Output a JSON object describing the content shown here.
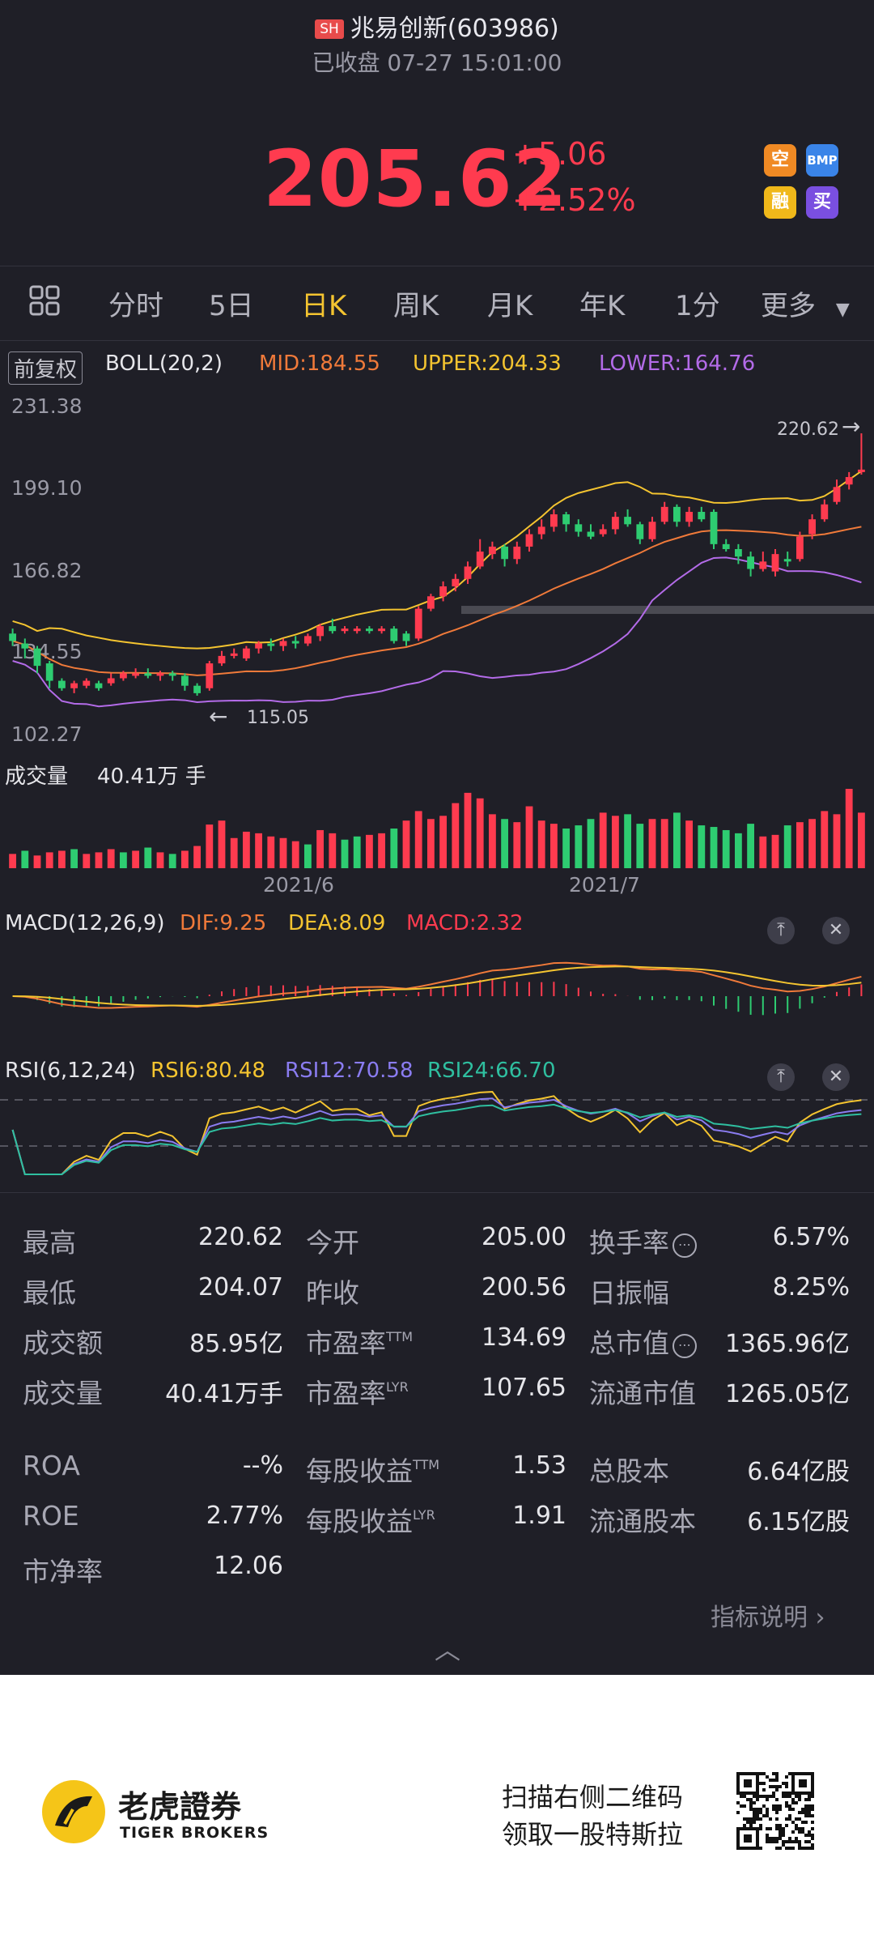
{
  "header": {
    "exchange_badge": "SH",
    "stock_title": "兆易创新(603986)",
    "status": "已收盘 07-27 15:01:00",
    "price": "205.62",
    "change": "+5.06",
    "change_pct": "+2.52%",
    "quick_buttons": [
      {
        "label": "空",
        "icon": "short-icon"
      },
      {
        "label": "BMP",
        "icon": "bmp-icon"
      },
      {
        "label": "融",
        "icon": "margin-icon"
      },
      {
        "label": "买",
        "icon": "buy-icon"
      }
    ]
  },
  "tabs": {
    "items": [
      "分时",
      "5日",
      "日K",
      "周K",
      "月K",
      "年K",
      "1分",
      "更多"
    ],
    "active": "日K"
  },
  "boll": {
    "adjust": "前复权",
    "name": "BOLL(20,2)",
    "mid": "MID:184.55",
    "upper": "UPPER:204.33",
    "lower": "LOWER:164.76"
  },
  "price_axis": [
    "231.38",
    "199.10",
    "166.82",
    "134.55",
    "102.27"
  ],
  "annotations": {
    "high": "220.62",
    "low": "115.05"
  },
  "volume": {
    "label": "成交量",
    "value": "40.41万 手"
  },
  "date_axis": [
    "2021/6",
    "2021/7"
  ],
  "macd": {
    "name": "MACD(12,26,9)",
    "dif": "DIF:9.25",
    "dea": "DEA:8.09",
    "macd": "MACD:2.32"
  },
  "rsi": {
    "name": "RSI(6,12,24)",
    "rsi6": "RSI6:80.48",
    "rsi12": "RSI12:70.58",
    "rsi24": "RSI24:66.70"
  },
  "stats": {
    "col1": [
      {
        "label": "最高",
        "value": "220.62"
      },
      {
        "label": "最低",
        "value": "204.07"
      },
      {
        "label": "成交额",
        "value": "85.95亿"
      },
      {
        "label": "成交量",
        "value": "40.41万手"
      }
    ],
    "col2": [
      {
        "label": "今开",
        "sup": "",
        "value": "205.00"
      },
      {
        "label": "昨收",
        "sup": "",
        "value": "200.56"
      },
      {
        "label": "市盈率",
        "sup": "TTM",
        "value": "134.69"
      },
      {
        "label": "市盈率",
        "sup": "LYR",
        "value": "107.65"
      }
    ],
    "col3": [
      {
        "label": "换手率",
        "value": "6.57%"
      },
      {
        "label": "日振幅",
        "value": "8.25%"
      },
      {
        "label": "总市值",
        "value": "1365.96亿"
      },
      {
        "label": "流通市值",
        "value": "1265.05亿"
      }
    ],
    "extra1": [
      {
        "label": "ROA",
        "value": "--%"
      },
      {
        "label": "ROE",
        "value": "2.77%"
      },
      {
        "label": "市净率",
        "value": "12.06"
      }
    ],
    "extra2": [
      {
        "label": "每股收益",
        "sup": "TTM",
        "value": "1.53"
      },
      {
        "label": "每股收益",
        "sup": "LYR",
        "value": "1.91"
      }
    ],
    "extra3": [
      {
        "label": "总股本",
        "value": "6.64亿股"
      },
      {
        "label": "流通股本",
        "value": "6.15亿股"
      }
    ],
    "indicator_link": "指标说明"
  },
  "footer": {
    "brand_cn": "老虎證券",
    "brand_en": "TIGER BROKERS",
    "promo_line1": "扫描右侧二维码",
    "promo_line2": "领取一股特斯拉"
  },
  "colors": {
    "up": "#ff3b4f",
    "down": "#2ecc71",
    "accent": "#f4c430",
    "bg": "#1f1f27"
  },
  "candles": [
    {
      "o": 140,
      "c": 137,
      "h": 142,
      "l": 135
    },
    {
      "o": 136,
      "c": 134,
      "h": 138,
      "l": 130
    },
    {
      "o": 134,
      "c": 127,
      "h": 135,
      "l": 124
    },
    {
      "o": 128,
      "c": 121,
      "h": 129,
      "l": 118
    },
    {
      "o": 121,
      "c": 118,
      "h": 122,
      "l": 117
    },
    {
      "o": 118,
      "c": 120,
      "h": 121,
      "l": 116
    },
    {
      "o": 119,
      "c": 121,
      "h": 122,
      "l": 118
    },
    {
      "o": 120,
      "c": 118,
      "h": 121,
      "l": 117
    },
    {
      "o": 120,
      "c": 122,
      "h": 124,
      "l": 119
    },
    {
      "o": 122,
      "c": 124,
      "h": 125,
      "l": 121
    },
    {
      "o": 123,
      "c": 124,
      "h": 126,
      "l": 122
    },
    {
      "o": 124,
      "c": 123,
      "h": 126,
      "l": 122
    },
    {
      "o": 123,
      "c": 124,
      "h": 125,
      "l": 121
    },
    {
      "o": 124,
      "c": 123,
      "h": 125,
      "l": 121
    },
    {
      "o": 123,
      "c": 119,
      "h": 124,
      "l": 117
    },
    {
      "o": 119,
      "c": 116,
      "h": 120,
      "l": 115
    },
    {
      "o": 118,
      "c": 128,
      "h": 129,
      "l": 117
    },
    {
      "o": 128,
      "c": 131,
      "h": 133,
      "l": 127
    },
    {
      "o": 131,
      "c": 132,
      "h": 134,
      "l": 130
    },
    {
      "o": 130,
      "c": 134,
      "h": 135,
      "l": 129
    },
    {
      "o": 134,
      "c": 136,
      "h": 137,
      "l": 132
    },
    {
      "o": 136,
      "c": 135,
      "h": 138,
      "l": 133
    },
    {
      "o": 135,
      "c": 137,
      "h": 138,
      "l": 133
    },
    {
      "o": 137,
      "c": 136,
      "h": 139,
      "l": 134
    },
    {
      "o": 136,
      "c": 139,
      "h": 140,
      "l": 135
    },
    {
      "o": 139,
      "c": 143,
      "h": 144,
      "l": 137
    },
    {
      "o": 143,
      "c": 141,
      "h": 146,
      "l": 140
    },
    {
      "o": 141,
      "c": 142,
      "h": 143,
      "l": 140
    },
    {
      "o": 141,
      "c": 142,
      "h": 143,
      "l": 140
    },
    {
      "o": 142,
      "c": 141,
      "h": 143,
      "l": 140
    },
    {
      "o": 141,
      "c": 142,
      "h": 143,
      "l": 140
    },
    {
      "o": 142,
      "c": 137,
      "h": 143,
      "l": 136
    },
    {
      "o": 140,
      "c": 137,
      "h": 141,
      "l": 135
    },
    {
      "o": 138,
      "c": 150,
      "h": 151,
      "l": 137
    },
    {
      "o": 150,
      "c": 155,
      "h": 156,
      "l": 149
    },
    {
      "o": 155,
      "c": 159,
      "h": 161,
      "l": 153
    },
    {
      "o": 159,
      "c": 162,
      "h": 164,
      "l": 157
    },
    {
      "o": 162,
      "c": 167,
      "h": 169,
      "l": 160
    },
    {
      "o": 167,
      "c": 173,
      "h": 178,
      "l": 166
    },
    {
      "o": 172,
      "c": 175,
      "h": 177,
      "l": 170
    },
    {
      "o": 175,
      "c": 170,
      "h": 176,
      "l": 167
    },
    {
      "o": 170,
      "c": 175,
      "h": 177,
      "l": 168
    },
    {
      "o": 175,
      "c": 180,
      "h": 182,
      "l": 173
    },
    {
      "o": 180,
      "c": 183,
      "h": 186,
      "l": 178
    },
    {
      "o": 183,
      "c": 188,
      "h": 190,
      "l": 181
    },
    {
      "o": 188,
      "c": 184,
      "h": 189,
      "l": 181
    },
    {
      "o": 184,
      "c": 181,
      "h": 186,
      "l": 179
    },
    {
      "o": 181,
      "c": 179,
      "h": 184,
      "l": 178
    },
    {
      "o": 180,
      "c": 182,
      "h": 184,
      "l": 179
    },
    {
      "o": 182,
      "c": 187,
      "h": 189,
      "l": 180
    },
    {
      "o": 187,
      "c": 184,
      "h": 190,
      "l": 183
    },
    {
      "o": 184,
      "c": 178,
      "h": 185,
      "l": 176
    },
    {
      "o": 178,
      "c": 185,
      "h": 187,
      "l": 177
    },
    {
      "o": 185,
      "c": 191,
      "h": 193,
      "l": 184
    },
    {
      "o": 191,
      "c": 185,
      "h": 192,
      "l": 183
    },
    {
      "o": 185,
      "c": 189,
      "h": 191,
      "l": 183
    },
    {
      "o": 189,
      "c": 186,
      "h": 191,
      "l": 185
    },
    {
      "o": 189,
      "c": 176,
      "h": 190,
      "l": 174
    },
    {
      "o": 176,
      "c": 174,
      "h": 178,
      "l": 173
    },
    {
      "o": 174,
      "c": 171,
      "h": 176,
      "l": 168
    },
    {
      "o": 171,
      "c": 166,
      "h": 173,
      "l": 163
    },
    {
      "o": 166,
      "c": 169,
      "h": 173,
      "l": 165
    },
    {
      "o": 165,
      "c": 172,
      "h": 174,
      "l": 163
    },
    {
      "o": 170,
      "c": 169,
      "h": 173,
      "l": 167
    },
    {
      "o": 170,
      "c": 179,
      "h": 181,
      "l": 169
    },
    {
      "o": 180,
      "c": 186,
      "h": 188,
      "l": 178
    },
    {
      "o": 186,
      "c": 192,
      "h": 194,
      "l": 185
    },
    {
      "o": 193,
      "c": 199,
      "h": 202,
      "l": 192
    },
    {
      "o": 200,
      "c": 203,
      "h": 205,
      "l": 198
    },
    {
      "o": 205,
      "c": 206,
      "h": 220.6,
      "l": 204
    }
  ],
  "volumes": [
    1,
    0,
    1,
    1,
    1,
    0,
    1,
    1,
    1,
    0,
    1,
    0,
    1,
    0,
    1,
    1,
    1,
    1,
    1,
    1,
    1,
    1,
    1,
    1,
    0,
    1,
    1,
    0,
    0,
    1,
    1,
    0,
    1,
    1,
    1,
    1,
    1,
    1,
    1,
    1,
    0,
    1,
    1,
    1,
    1,
    0,
    0,
    0,
    1,
    1,
    0,
    0,
    1,
    1,
    0,
    1,
    0,
    0,
    0,
    0,
    0,
    1,
    1,
    0,
    1,
    1,
    1,
    1,
    1,
    1
  ],
  "volume_sizes": [
    0.18,
    0.22,
    0.16,
    0.2,
    0.22,
    0.24,
    0.18,
    0.2,
    0.24,
    0.2,
    0.22,
    0.26,
    0.2,
    0.18,
    0.22,
    0.28,
    0.55,
    0.6,
    0.38,
    0.46,
    0.44,
    0.4,
    0.38,
    0.34,
    0.3,
    0.48,
    0.44,
    0.36,
    0.4,
    0.42,
    0.44,
    0.5,
    0.6,
    0.72,
    0.62,
    0.66,
    0.82,
    0.95,
    0.88,
    0.68,
    0.62,
    0.58,
    0.78,
    0.6,
    0.56,
    0.5,
    0.54,
    0.62,
    0.7,
    0.66,
    0.68,
    0.56,
    0.62,
    0.62,
    0.7,
    0.6,
    0.54,
    0.52,
    0.48,
    0.44,
    0.56,
    0.4,
    0.42,
    0.54,
    0.58,
    0.62,
    0.72,
    0.68,
    1.0,
    0.7
  ]
}
